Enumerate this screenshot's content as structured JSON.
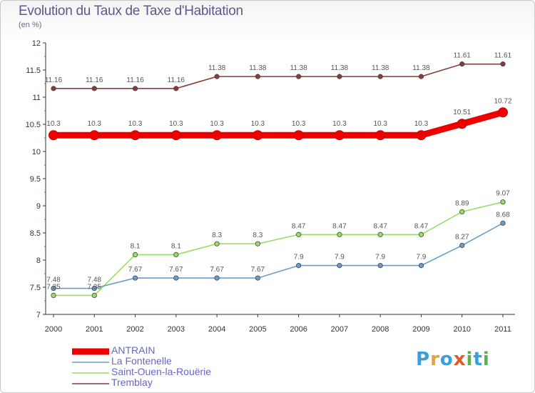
{
  "header": {
    "title": "Evolution du Taux de Taxe d'Habitation",
    "unit": "(en %)"
  },
  "brand": {
    "letters": [
      "P",
      "r",
      "o",
      "x",
      "i",
      "t",
      "i"
    ],
    "colors": [
      "#3aa0d8",
      "#e8a13a",
      "#3aa0d8",
      "#e05a2a",
      "#5ab04a",
      "#3aa0d8",
      "#5ab04a"
    ]
  },
  "chart_data": {
    "type": "line",
    "x": [
      "2000",
      "2001",
      "2002",
      "2003",
      "2004",
      "2005",
      "2006",
      "2007",
      "2008",
      "2009",
      "2010",
      "2011"
    ],
    "ylim": [
      7,
      12
    ],
    "yticks": [
      "7",
      "7.5",
      "8",
      "8.5",
      "9",
      "9.5",
      "10",
      "10.5",
      "11",
      "11.5",
      "12"
    ],
    "grid": false,
    "legend_position": "bottom-left",
    "series": [
      {
        "name": "ANTRAIN",
        "color": "#ee0000",
        "values": [
          10.3,
          10.3,
          10.3,
          10.3,
          10.3,
          10.3,
          10.3,
          10.3,
          10.3,
          10.3,
          10.51,
          10.72
        ],
        "labels": [
          "10.3",
          "10.3",
          "10.3",
          "10.3",
          "10.3",
          "10.3",
          "10.3",
          "10.3",
          "10.3",
          "10.3",
          "10.51",
          "10.72"
        ]
      },
      {
        "name": "La Fontenelle",
        "color": "#6a9ccc",
        "values": [
          7.48,
          7.48,
          7.67,
          7.67,
          7.67,
          7.67,
          7.9,
          7.9,
          7.9,
          7.9,
          8.27,
          8.68
        ],
        "labels": [
          "7.48",
          "7.48",
          "7.67",
          "7.67",
          "7.67",
          "7.67",
          "7.9",
          "7.9",
          "7.9",
          "7.9",
          "8.27",
          "8.68"
        ]
      },
      {
        "name": "Saint-Ouen-la-Rouërie",
        "color": "#99dd66",
        "values": [
          7.35,
          7.35,
          8.1,
          8.1,
          8.3,
          8.3,
          8.47,
          8.47,
          8.47,
          8.47,
          8.89,
          9.07
        ],
        "labels": [
          "7.35",
          "7.35",
          "8.1",
          "8.1",
          "8.3",
          "8.3",
          "8.47",
          "8.47",
          "8.47",
          "8.47",
          "8.89",
          "9.07"
        ]
      },
      {
        "name": "Tremblay",
        "color": "#8b3a3a",
        "values": [
          11.16,
          11.16,
          11.16,
          11.16,
          11.38,
          11.38,
          11.38,
          11.38,
          11.38,
          11.38,
          11.61,
          11.61
        ],
        "labels": [
          "11.16",
          "11.16",
          "11.16",
          "11.16",
          "11.38",
          "11.38",
          "11.38",
          "11.38",
          "11.38",
          "11.38",
          "11.61",
          "11.61"
        ]
      }
    ]
  }
}
